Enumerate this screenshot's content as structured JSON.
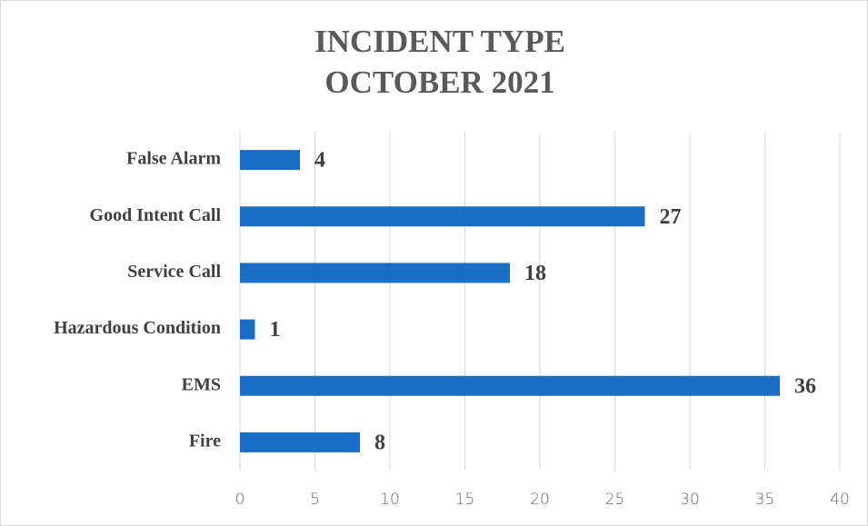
{
  "chart_data": {
    "type": "bar",
    "orientation": "horizontal",
    "title": [
      "INCIDENT TYPE",
      "OCTOBER 2021"
    ],
    "categories": [
      "False Alarm",
      "Good Intent Call",
      "Service Call",
      "Hazardous Condition",
      "EMS",
      "Fire"
    ],
    "values": [
      4,
      27,
      18,
      1,
      36,
      8
    ],
    "color": "#1b6ec6",
    "xlim": [
      0,
      40
    ],
    "xticks": [
      0,
      5,
      10,
      15,
      20,
      25,
      30,
      35,
      40
    ],
    "grid": true
  }
}
